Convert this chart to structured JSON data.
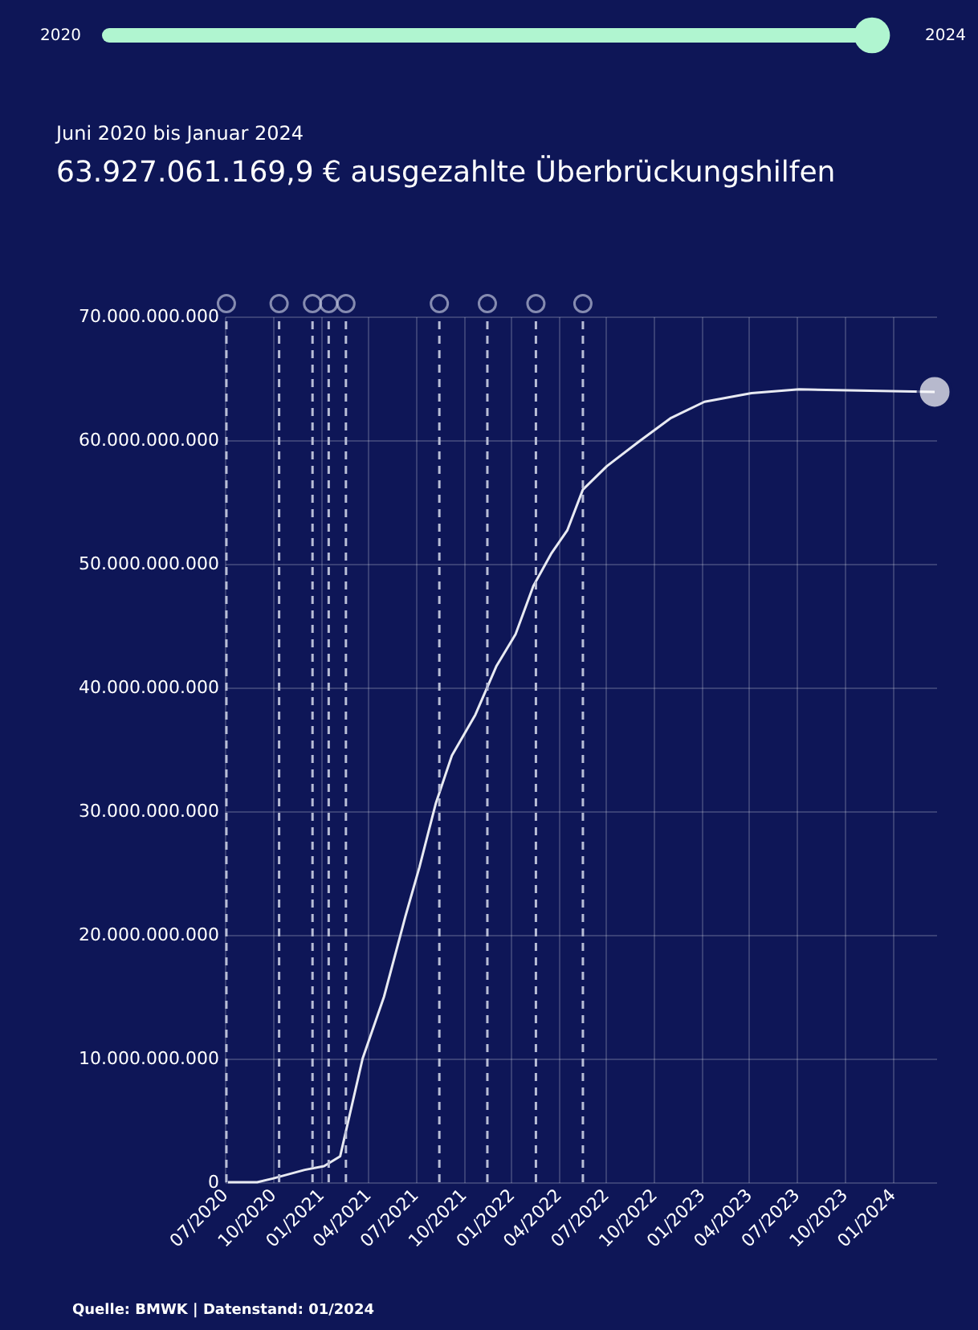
{
  "chart_data": {
    "type": "line",
    "title": "63.927.061.169,9 € ausgezahlte Überbrückungshilfen",
    "subtitle": "Juni 2020 bis Januar 2024",
    "annotations": [
      "2020",
      "2024",
      "Quelle: BMWK | Datenstand: 01/2024"
    ],
    "series": [
      {
        "color": "#e8eaf2",
        "x": [
          "2020-07-07",
          "2020-09-01",
          "2020-10-01",
          "2020-12-01",
          "2021-01-07",
          "2021-02-07",
          "2021-03-22",
          "2021-05-02",
          "2021-06-12",
          "2021-07-09",
          "2021-08-09",
          "2021-09-09",
          "2021-10-24",
          "2021-12-03",
          "2022-01-09",
          "2022-02-12",
          "2022-03-18",
          "2022-04-18",
          "2022-05-18",
          "2022-07-03",
          "2022-09-03",
          "2022-11-03",
          "2023-01-06",
          "2023-04-06",
          "2023-07-06",
          "2024-03-22"
        ],
        "values": [
          0,
          0,
          300000000,
          1000000000,
          1300000000,
          2100000000,
          10000000000,
          15000000000,
          21500000000,
          25500000000,
          30600000000,
          34500000000,
          37800000000,
          41700000000,
          44300000000,
          48200000000,
          50800000000,
          52700000000,
          56000000000,
          57900000000,
          59900000000,
          61800000000,
          63100000000,
          63800000000,
          64100000000,
          63900000000
        ]
      }
    ],
    "xlim": [
      "2020-07-01",
      "2024-03-25"
    ],
    "xticks": [
      {
        "value": "2020-07",
        "label": "07/2020"
      },
      {
        "value": "2020-10",
        "label": "10/2020"
      },
      {
        "value": "2021-01",
        "label": "01/2021"
      },
      {
        "value": "2021-04",
        "label": "04/2021"
      },
      {
        "value": "2021-07",
        "label": "07/2021"
      },
      {
        "value": "2021-10",
        "label": "10/2021"
      },
      {
        "value": "2022-01",
        "label": "01/2022"
      },
      {
        "value": "2022-04",
        "label": "04/2022"
      },
      {
        "value": "2022-07",
        "label": "07/2022"
      },
      {
        "value": "2022-10",
        "label": "10/2022"
      },
      {
        "value": "2023-01",
        "label": "01/2023"
      },
      {
        "value": "2023-04",
        "label": "04/2023"
      },
      {
        "value": "2023-07",
        "label": "07/2023"
      },
      {
        "value": "2023-10",
        "label": "10/2023"
      },
      {
        "value": "2024-01",
        "label": "01/2024"
      }
    ],
    "ylim": [
      0,
      70000000000
    ],
    "yticks": [
      {
        "value": 0,
        "label": "0"
      },
      {
        "value": 10000000000,
        "label": "10.000.000.000"
      },
      {
        "value": 20000000000,
        "label": "20.000.000.000"
      },
      {
        "value": 30000000000,
        "label": "30.000.000.000"
      },
      {
        "value": 40000000000,
        "label": "40.000.000.000"
      },
      {
        "value": 50000000000,
        "label": "50.000.000.000"
      },
      {
        "value": 60000000000,
        "label": "60.000.000.000"
      },
      {
        "value": 70000000000,
        "label": "70.000.000.000"
      }
    ],
    "ref_lines": [
      {
        "axis": "x",
        "value": "2020-07-04",
        "color": "#b8bdd6",
        "line_style": "dashed"
      },
      {
        "axis": "x",
        "value": "2020-10-13",
        "color": "#b8bdd6",
        "line_style": "dashed"
      },
      {
        "axis": "x",
        "value": "2020-12-16",
        "color": "#b8bdd6",
        "line_style": "dashed"
      },
      {
        "axis": "x",
        "value": "2021-01-16",
        "color": "#b8bdd6",
        "line_style": "dashed"
      },
      {
        "axis": "x",
        "value": "2021-02-18",
        "color": "#b8bdd6",
        "line_style": "dashed"
      },
      {
        "axis": "x",
        "value": "2021-08-16",
        "color": "#b8bdd6",
        "line_style": "dashed"
      },
      {
        "axis": "x",
        "value": "2021-11-16",
        "color": "#b8bdd6",
        "line_style": "dashed"
      },
      {
        "axis": "x",
        "value": "2022-02-17",
        "color": "#b8bdd6",
        "line_style": "dashed"
      },
      {
        "axis": "x",
        "value": "2022-05-18",
        "color": "#b8bdd6",
        "line_style": "dashed"
      }
    ],
    "grid": true,
    "marker": "none",
    "line_style": "solid"
  }
}
